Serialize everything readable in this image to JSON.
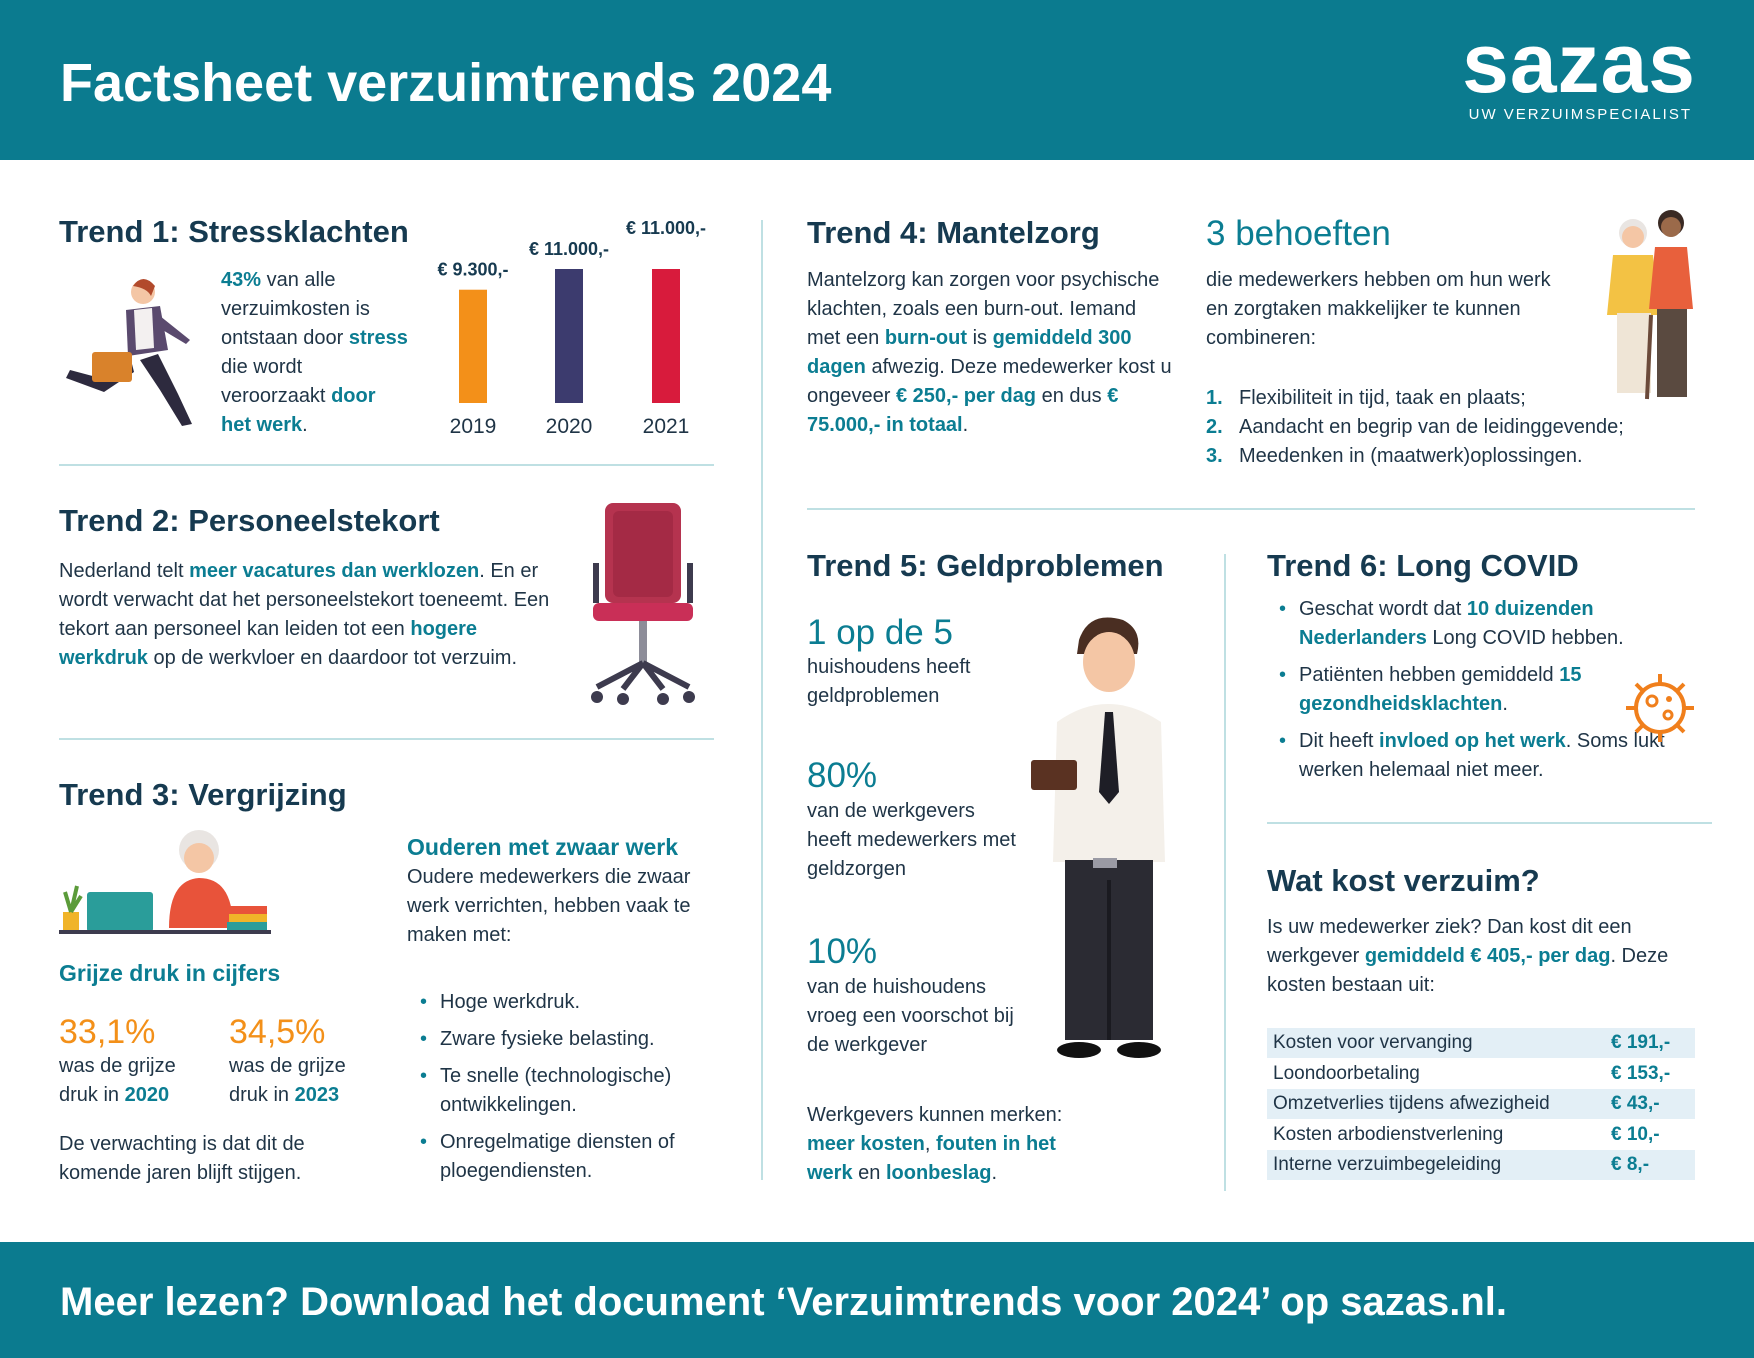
{
  "header": {
    "title": "Factsheet verzuimtrends 2024",
    "logo": "sazas",
    "tagline": "UW VERZUIMSPECIALIST"
  },
  "trend1": {
    "title": "Trend 1: Stressklachten",
    "text": [
      {
        "strong": "43%"
      },
      " van alle verzuimkosten is ontstaan door ",
      {
        "strong": "stress"
      },
      " die wordt veroorzaakt ",
      {
        "strong": "door het werk"
      },
      "."
    ]
  },
  "chart_data": {
    "type": "bar",
    "categories": [
      "2019",
      "2020",
      "2021"
    ],
    "values": [
      9300,
      11000,
      11000
    ],
    "value_labels": [
      "€ 9.300,-",
      "€ 11.000,-",
      "€ 11.000,-"
    ],
    "colors": [
      "#f39019",
      "#3c3b6e",
      "#d81b3c"
    ]
  },
  "trend2": {
    "title": "Trend 2: Personeelstekort",
    "text": [
      "Nederland telt ",
      {
        "strong": "meer vacatures dan werklozen"
      },
      ". En er wordt verwacht dat het personeelstekort toeneemt. Een tekort aan personeel kan leiden tot een ",
      {
        "strong": "hogere werkdruk"
      },
      " op de werkvloer en daardoor tot verzuim."
    ]
  },
  "trend3": {
    "title": "Trend 3: Vergrijzing",
    "subtitle": "Grijze druk in cijfers",
    "stats": [
      {
        "value": "33,1%",
        "text": [
          "was de grijze druk in ",
          {
            "strong": "2020"
          }
        ]
      },
      {
        "value": "34,5%",
        "text": [
          "was de grijze druk in ",
          {
            "strong": "2023"
          }
        ]
      }
    ],
    "outlook": "De verwachting is dat dit de komende jaren blijft stijgen.",
    "heavy_work": {
      "title": "Ouderen met zwaar werk",
      "text": "Oudere medewerkers die zwaar werk verrichten, hebben vaak te maken met:",
      "items": [
        "Hoge werkdruk.",
        "Zware fysieke belasting.",
        "Te snelle (technologische) ontwikkelingen.",
        "Onregelmatige diensten of ploegendiensten."
      ]
    }
  },
  "trend4": {
    "title": "Trend 4: Mantelzorg",
    "text": [
      "Mantelzorg kan zorgen voor psychische klachten, zoals een burn-out. Iemand met een ",
      {
        "strong": "burn-out"
      },
      " is ",
      {
        "strong": "gemiddeld 300 dagen"
      },
      " afwezig. Deze medewerker kost u ongeveer ",
      {
        "strong": "€ 250,- per dag"
      },
      " en dus ",
      {
        "strong": "€ 75.000,- in totaal"
      },
      "."
    ],
    "needs": {
      "title": "3 behoeften",
      "text": "die medewerkers hebben om hun werk en zorgtaken makkelijker te kunnen combineren:",
      "items": [
        {
          "number": "1.",
          "text": "Flexibiliteit in tijd, taak en plaats;"
        },
        {
          "number": "2.",
          "text": "Aandacht en begrip van de leidinggevende;"
        },
        {
          "number": "3.",
          "text": "Meedenken in (maatwerk)oplossingen."
        }
      ]
    }
  },
  "trend5": {
    "title": "Trend 5: Geldproblemen",
    "stats": [
      {
        "value": "1 op de 5",
        "text": "huishoudens heeft geldproblemen"
      },
      {
        "value": "80%",
        "text": "van de werkgevers heeft medewerkers met geldzorgen"
      },
      {
        "value": "10%",
        "text": "van de huishoudens vroeg een voorschot bij de werkgever"
      }
    ],
    "effects": [
      "Werkgevers kunnen merken: ",
      {
        "strong": "meer kosten"
      },
      ", ",
      {
        "strong": "fouten in het werk"
      },
      " en ",
      {
        "strong": "loonbeslag"
      },
      "."
    ]
  },
  "trend6": {
    "title": "Trend 6: Long COVID",
    "items": [
      [
        "Geschat wordt dat ",
        {
          "strong": "10 duizenden Nederlanders"
        },
        " Long COVID hebben."
      ],
      [
        "Patiënten hebben gemiddeld ",
        {
          "strong": "15 gezondheidsklachten"
        },
        "."
      ],
      [
        "Dit heeft ",
        {
          "strong": "invloed op het werk"
        },
        ". Soms lukt werken helemaal niet meer."
      ]
    ]
  },
  "costs": {
    "title": "Wat kost verzuim?",
    "text": [
      "Is uw medewerker ziek? Dan kost dit een werkgever ",
      {
        "strong": "gemiddeld € 405,- per dag"
      },
      ". Deze kosten bestaan uit:"
    ],
    "rows": [
      [
        "Kosten voor vervanging",
        "€ 191,-"
      ],
      [
        "Loondoorbetaling",
        "€ 153,-"
      ],
      [
        "Omzetverlies tijdens afwezigheid",
        "€ 43,-"
      ],
      [
        "Kosten arbodienstverlening",
        "€ 10,-"
      ],
      [
        "Interne verzuimbegeleiding",
        "€ 8,-"
      ]
    ]
  },
  "footer": {
    "text": "Meer lezen? Download het document ‘Verzuimtrends voor 2024’ op sazas.nl."
  }
}
